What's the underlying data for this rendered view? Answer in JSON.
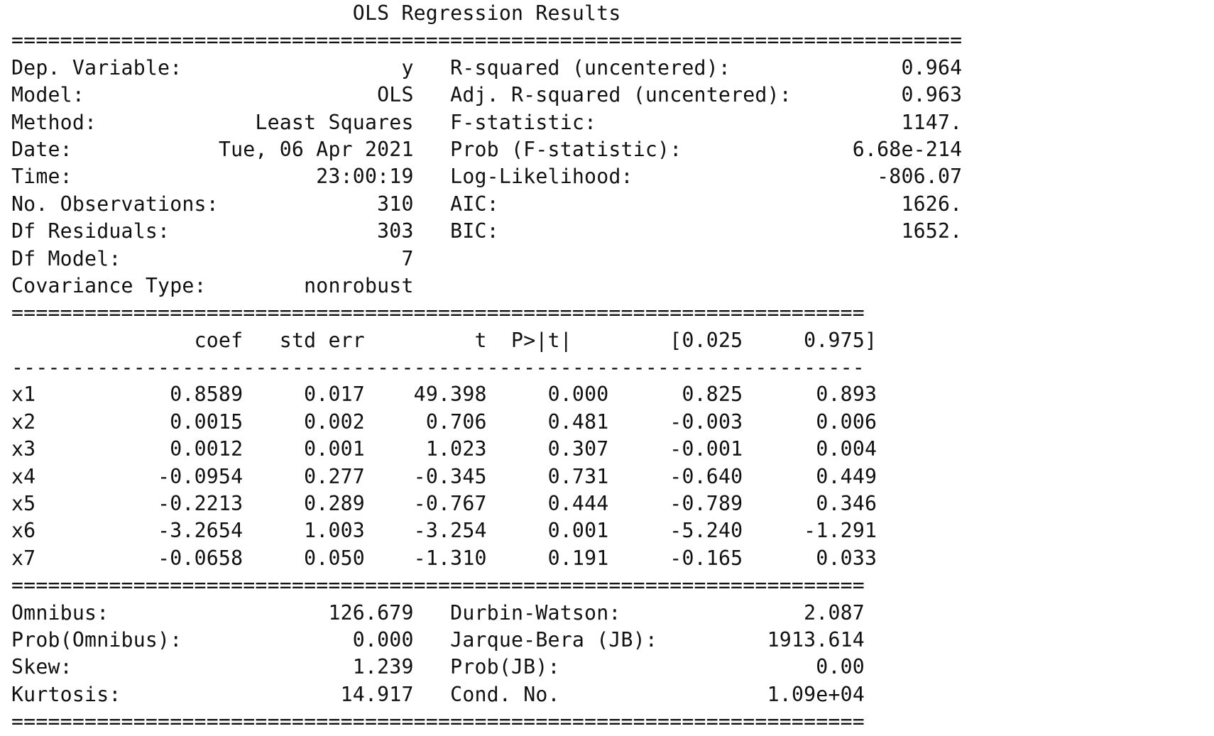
{
  "title": "OLS Regression Results",
  "rules": {
    "wide": "==============================================================================",
    "medium": "======================================================================",
    "thin": "----------------------------------------------------------------------"
  },
  "summary": {
    "left": [
      {
        "label": "Dep. Variable:",
        "value": "y"
      },
      {
        "label": "Model:",
        "value": "OLS"
      },
      {
        "label": "Method:",
        "value": "Least Squares"
      },
      {
        "label": "Date:",
        "value": "Tue, 06 Apr 2021"
      },
      {
        "label": "Time:",
        "value": "23:00:19"
      },
      {
        "label": "No. Observations:",
        "value": "310"
      },
      {
        "label": "Df Residuals:",
        "value": "303"
      },
      {
        "label": "Df Model:",
        "value": "7"
      },
      {
        "label": "Covariance Type:",
        "value": "nonrobust"
      }
    ],
    "right": [
      {
        "label": "R-squared (uncentered):",
        "value": "0.964"
      },
      {
        "label": "Adj. R-squared (uncentered):",
        "value": "0.963"
      },
      {
        "label": "F-statistic:",
        "value": "1147."
      },
      {
        "label": "Prob (F-statistic):",
        "value": "6.68e-214"
      },
      {
        "label": "Log-Likelihood:",
        "value": "-806.07"
      },
      {
        "label": "AIC:",
        "value": "1626."
      },
      {
        "label": "BIC:",
        "value": "1652."
      }
    ]
  },
  "coef_table": {
    "headers": [
      "coef",
      "std err",
      "t",
      "P>|t|",
      "[0.025",
      "0.975]"
    ],
    "rows": [
      {
        "name": "x1",
        "values": [
          "0.8589",
          "0.017",
          "49.398",
          "0.000",
          "0.825",
          "0.893"
        ]
      },
      {
        "name": "x2",
        "values": [
          "0.0015",
          "0.002",
          "0.706",
          "0.481",
          "-0.003",
          "0.006"
        ]
      },
      {
        "name": "x3",
        "values": [
          "0.0012",
          "0.001",
          "1.023",
          "0.307",
          "-0.001",
          "0.004"
        ]
      },
      {
        "name": "x4",
        "values": [
          "-0.0954",
          "0.277",
          "-0.345",
          "0.731",
          "-0.640",
          "0.449"
        ]
      },
      {
        "name": "x5",
        "values": [
          "-0.2213",
          "0.289",
          "-0.767",
          "0.444",
          "-0.789",
          "0.346"
        ]
      },
      {
        "name": "x6",
        "values": [
          "-3.2654",
          "1.003",
          "-3.254",
          "0.001",
          "-5.240",
          "-1.291"
        ]
      },
      {
        "name": "x7",
        "values": [
          "-0.0658",
          "0.050",
          "-1.310",
          "0.191",
          "-0.165",
          "0.033"
        ]
      }
    ]
  },
  "diagnostics": {
    "left": [
      {
        "label": "Omnibus:",
        "value": "126.679"
      },
      {
        "label": "Prob(Omnibus):",
        "value": "0.000"
      },
      {
        "label": "Skew:",
        "value": "1.239"
      },
      {
        "label": "Kurtosis:",
        "value": "14.917"
      }
    ],
    "right": [
      {
        "label": "Durbin-Watson:",
        "value": "2.087"
      },
      {
        "label": "Jarque-Bera (JB):",
        "value": "1913.614"
      },
      {
        "label": "Prob(JB):",
        "value": "0.00"
      },
      {
        "label": "Cond. No.",
        "value": "1.09e+04"
      }
    ]
  }
}
